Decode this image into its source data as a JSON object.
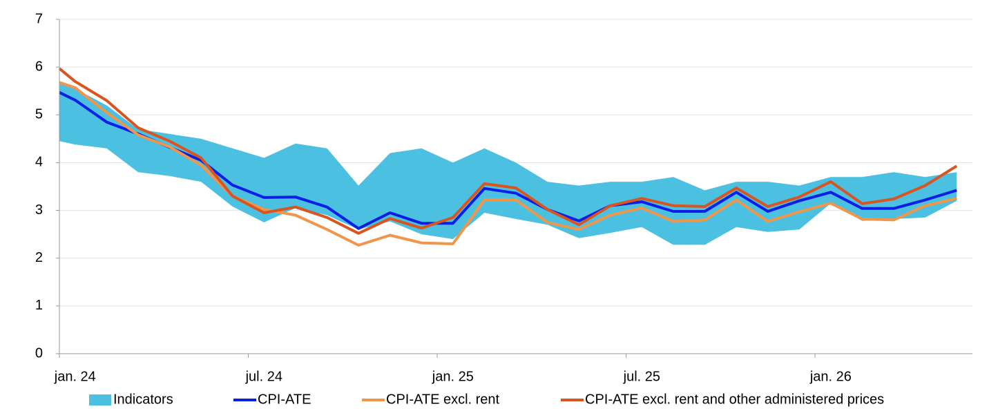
{
  "chart_data": {
    "type": "line",
    "categories": [
      null,
      "jan. 24",
      null,
      null,
      null,
      null,
      null,
      "jul. 24",
      null,
      null,
      null,
      null,
      null,
      "jan. 25",
      null,
      null,
      null,
      null,
      null,
      "jul. 25",
      null,
      null,
      null,
      null,
      null,
      "jan. 26",
      null,
      null,
      null,
      null
    ],
    "series": [
      {
        "name": "Indicators",
        "kind": "band",
        "color": "#4cc0e0",
        "upper": [
          5.65,
          5.55,
          5.2,
          4.7,
          4.6,
          4.5,
          4.3,
          4.1,
          4.4,
          4.3,
          3.52,
          4.2,
          4.3,
          4.0,
          4.3,
          4.0,
          3.6,
          3.52,
          3.6,
          3.6,
          3.7,
          3.42,
          3.6,
          3.6,
          3.52,
          3.7,
          3.7,
          3.8,
          3.7,
          3.8
        ],
        "lower": [
          4.45,
          4.38,
          4.3,
          3.8,
          3.72,
          3.6,
          3.08,
          2.75,
          3.05,
          2.9,
          2.6,
          2.77,
          2.5,
          2.4,
          2.95,
          2.82,
          2.7,
          2.42,
          2.53,
          2.65,
          2.28,
          2.28,
          2.65,
          2.55,
          2.6,
          3.15,
          2.78,
          2.82,
          2.85,
          3.2
        ]
      },
      {
        "name": "CPI-ATE",
        "color": "#0a1ee6",
        "values": [
          5.47,
          5.31,
          4.85,
          4.6,
          4.32,
          4.05,
          3.53,
          3.27,
          3.28,
          3.07,
          2.62,
          2.95,
          2.73,
          2.73,
          3.46,
          3.36,
          3.02,
          2.78,
          3.1,
          3.18,
          2.98,
          2.98,
          3.38,
          2.98,
          3.2,
          3.38,
          3.04,
          3.04,
          3.22,
          3.42
        ]
      },
      {
        "name": "CPI-ATE excl. rent",
        "color": "#f0964b",
        "values": [
          5.68,
          5.57,
          5.05,
          4.58,
          4.33,
          3.95,
          3.3,
          3.02,
          2.9,
          2.6,
          2.27,
          2.48,
          2.32,
          2.3,
          3.22,
          3.22,
          2.75,
          2.6,
          2.9,
          3.05,
          2.77,
          2.8,
          3.22,
          2.77,
          2.97,
          3.15,
          2.82,
          2.8,
          3.1,
          3.25
        ]
      },
      {
        "name": "CPI-ATE excl. rent and other administered prices",
        "color": "#d9541e",
        "values": [
          5.97,
          5.7,
          5.3,
          4.73,
          4.45,
          4.1,
          3.3,
          2.95,
          3.07,
          2.85,
          2.52,
          2.83,
          2.63,
          2.85,
          3.56,
          3.47,
          3.02,
          2.7,
          3.1,
          3.25,
          3.1,
          3.08,
          3.47,
          3.08,
          3.28,
          3.6,
          3.14,
          3.24,
          3.52,
          3.93
        ]
      }
    ],
    "ylim": [
      0,
      7
    ],
    "yticks": [
      0,
      1,
      2,
      3,
      4,
      5,
      6,
      7
    ],
    "grid": true,
    "legend": "bottom"
  }
}
